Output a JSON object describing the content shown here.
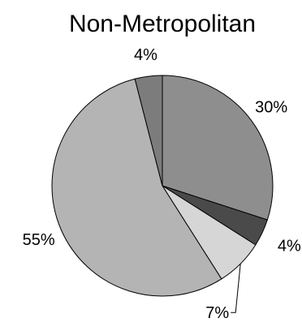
{
  "chart_data": {
    "type": "pie",
    "title": "Non-Metropolitan",
    "slices": [
      {
        "value": 30,
        "label": "30%",
        "color": "#8e8e8e"
      },
      {
        "value": 4,
        "label": "4%",
        "color": "#4a4a4a"
      },
      {
        "value": 7,
        "label": "7%",
        "color": "#d6d6d6"
      },
      {
        "value": 55,
        "label": "55%",
        "color": "#b4b4b4"
      },
      {
        "value": 4,
        "label": "4%",
        "color": "#7c7c7c"
      }
    ],
    "start": "12 o'clock",
    "direction": "clockwise",
    "legend": "none",
    "outline_color": "#000000"
  }
}
